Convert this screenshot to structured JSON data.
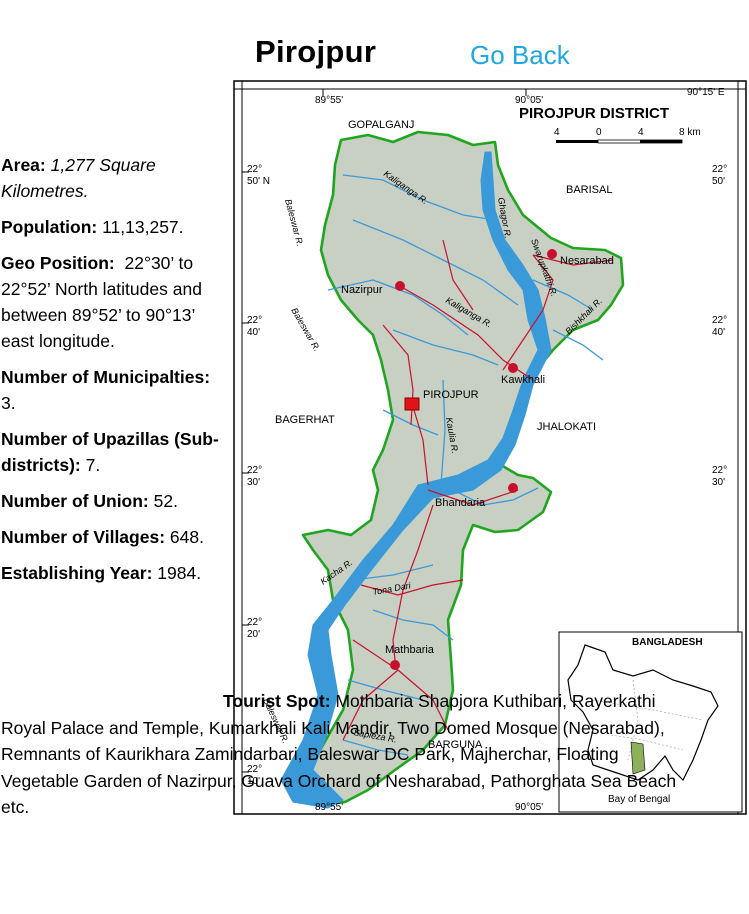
{
  "header": {
    "title": "Pirojpur",
    "go_back": "Go Back"
  },
  "info": {
    "area_label": "Area:",
    "area_value": "1,277 Square Kilometres.",
    "population_label": "Population:",
    "population_value": "11,13,257.",
    "geo_label": "Geo Position:",
    "geo_value": "22°30’ to 22°52’ North latitudes and between 89°52’ to 90°13’ east longitude.",
    "municipalities_label": "Number of Municipalties:",
    "municipalities_value": "3.",
    "upazillas_label": "Number of Upazillas (Sub-districts):",
    "upazillas_value": "7.",
    "union_label": "Number of Union:",
    "union_value": "52.",
    "villages_label": "Number of Villages:",
    "villages_value": "648.",
    "year_label": "Establishing Year:",
    "year_value": "1984.",
    "tourist_label": "Tourist Spot:",
    "tourist_value": "Mothbaria Shapjora Kuthibari, Rayerkathi Royal Palace and Temple, Kumarkhali Kali Mandir, Two Domed Mosque (Nesarabad), Remnants of Kaurikhara Zamindarbari, Baleswar DC Park, Majherchar, Floating Vegetable Garden of Nazirpur, Guava Orchard of Nesharabad, Pathorghata Sea Beach etc."
  },
  "map": {
    "title": "PIROJPUR DISTRICT",
    "scale_labels": [
      "4",
      "0",
      "4",
      "8 km"
    ],
    "lon_labels": [
      "89°55'",
      "90°05'",
      "90°15' E"
    ],
    "lat_labels": {
      "l1": "22°",
      "l1b": "50' N",
      "r1": "22°",
      "r1b": "50'",
      "l2": "22°",
      "l2b": "40'",
      "r2": "22°",
      "r2b": "40'",
      "l3": "22°",
      "l3b": "30'",
      "r3": "22°",
      "r3b": "30'",
      "l4": "22°",
      "l4b": "20'",
      "l5": "22°",
      "l5b": "10'"
    },
    "neighbors": [
      "GOPALGANJ",
      "BARISAL",
      "BAGERHAT",
      "JHALOKATI",
      "BARGUNA"
    ],
    "towns": [
      "Nesarabad",
      "Nazirpur",
      "Kawkhali",
      "PIROJPUR",
      "Bhandaria",
      "Mathbaria"
    ],
    "rivers": [
      "Kaliganga R.",
      "Baleswar R.",
      "Ghagor R.",
      "Swarupkathi R.",
      "Kaliganga R.",
      "Baleswar R.",
      "Kacha R.",
      "Kaulia R.",
      "Bishkhali R.",
      "Sapleza R.",
      "Baleswar R.",
      "Tona Dari"
    ],
    "inset_title": "BANGLADESH",
    "inset_caption": "Bay of Bengal",
    "colors": {
      "land": "#c8cfc3",
      "water": "#3a9ad9",
      "border": "#1fa51f",
      "road": "#c8102e",
      "town": "#c8102e"
    }
  }
}
